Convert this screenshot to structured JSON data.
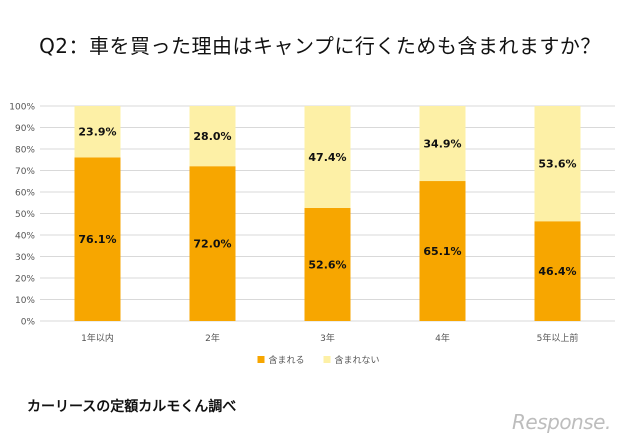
{
  "chart_data": {
    "type": "bar",
    "stacked": true,
    "title": "Q2：車を買った理由はキャンプに行くためも含まれますか？",
    "categories": [
      "1年以内",
      "2年",
      "3年",
      "4年",
      "5年以上前"
    ],
    "series": [
      {
        "name": "含まれる",
        "values": [
          76.1,
          72.0,
          52.6,
          65.1,
          46.4
        ],
        "labels": [
          "76.1%",
          "72.0%",
          "52.6%",
          "65.1%",
          "46.4%"
        ],
        "color": "#F7A600"
      },
      {
        "name": "含まれない",
        "values": [
          23.9,
          28.0,
          47.4,
          34.9,
          53.6
        ],
        "labels": [
          "23.9%",
          "28.0%",
          "47.4%",
          "34.9%",
          "53.6%"
        ],
        "color": "#FDF0A6"
      }
    ],
    "y_ticks": [
      "0%",
      "10%",
      "20%",
      "30%",
      "40%",
      "50%",
      "60%",
      "70%",
      "80%",
      "90%",
      "100%"
    ],
    "ylim": [
      0,
      100
    ],
    "grid": true,
    "legend_position": "bottom"
  },
  "footer": {
    "source": "カーリースの定額カルモくん調べ",
    "watermark": "Response."
  }
}
